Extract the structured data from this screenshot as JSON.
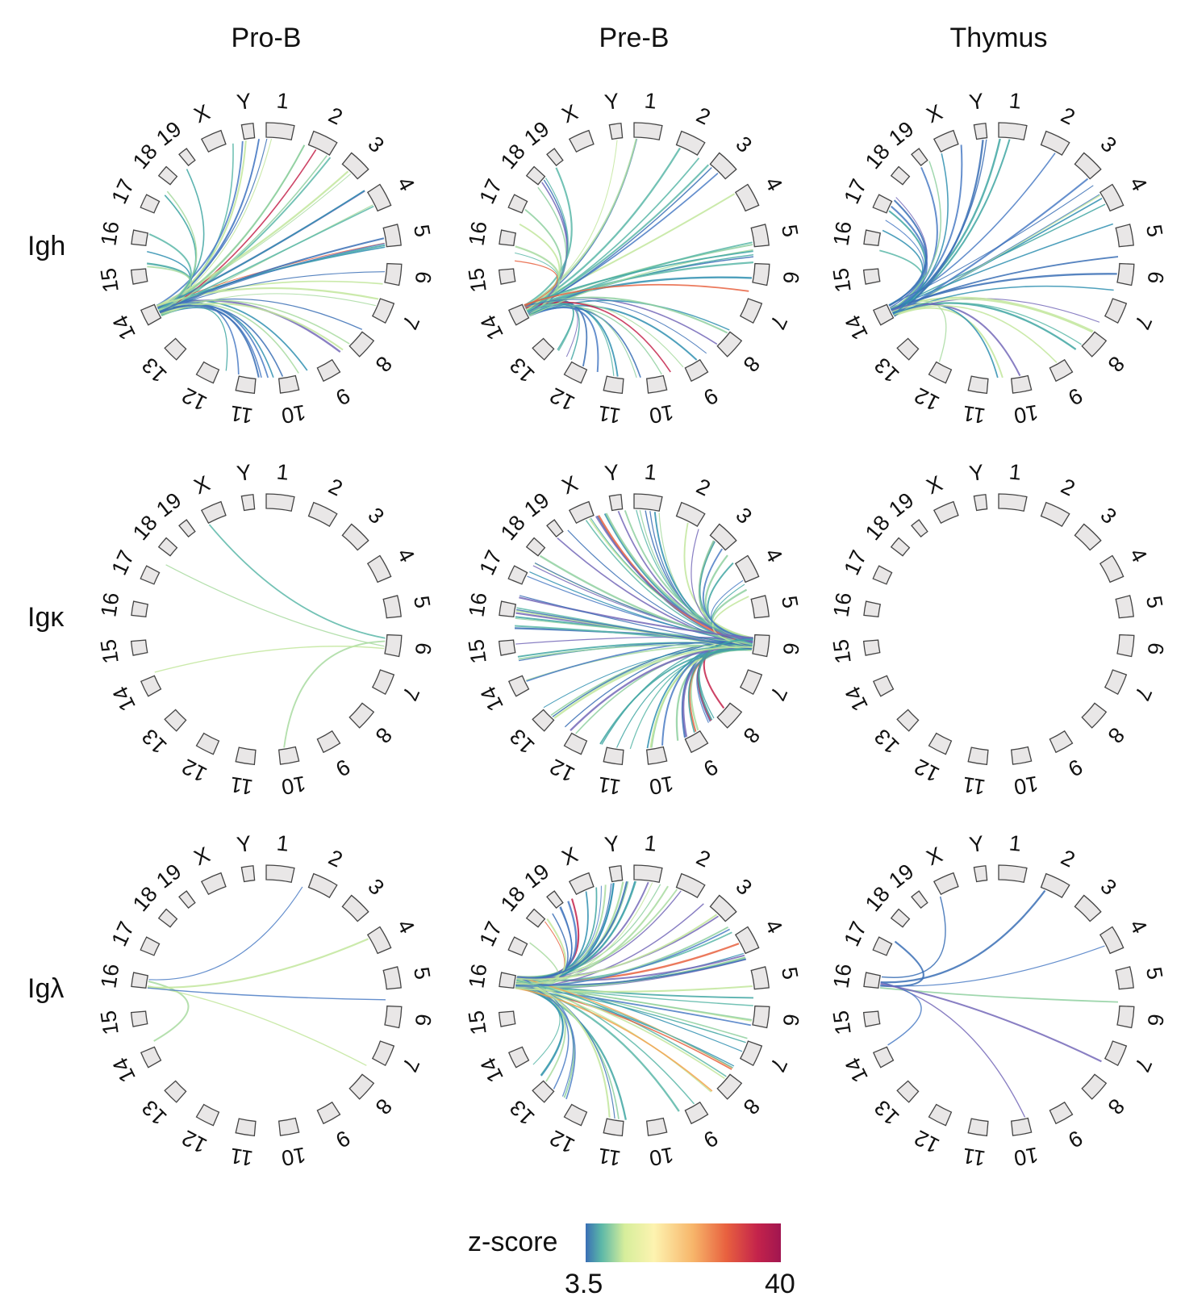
{
  "columns": [
    "Pro-B",
    "Pre-B",
    "Thymus"
  ],
  "rows": [
    "Igh",
    "Igκ",
    "Igλ"
  ],
  "chromosomes": [
    "1",
    "2",
    "3",
    "4",
    "5",
    "6",
    "7",
    "8",
    "9",
    "10",
    "11",
    "12",
    "13",
    "14",
    "15",
    "16",
    "17",
    "18",
    "19",
    "X",
    "Y"
  ],
  "legend": {
    "title": "z-score",
    "min_label": "3.5",
    "max_label": "40",
    "colors": [
      "#3a6fb5",
      "#5bb7a8",
      "#d6ee9b",
      "#fdf3b0",
      "#f7b56a",
      "#e8613f",
      "#c4234b",
      "#a11650"
    ]
  },
  "panels": [
    {
      "row": "Igh",
      "column": "Pro-B",
      "anchor_chromosome": "14",
      "link_count": 48,
      "links": "many"
    },
    {
      "row": "Igh",
      "column": "Pre-B",
      "anchor_chromosome": "14",
      "link_count": 46,
      "links": "many"
    },
    {
      "row": "Igh",
      "column": "Thymus",
      "anchor_chromosome": "14",
      "link_count": 36,
      "links": "many"
    },
    {
      "row": "Igκ",
      "column": "Pro-B",
      "anchor_chromosome": "6",
      "link_count": 4,
      "links": "few"
    },
    {
      "row": "Igκ",
      "column": "Pre-B",
      "anchor_chromosome": "6",
      "link_count": 80,
      "links": "many"
    },
    {
      "row": "Igκ",
      "column": "Thymus",
      "anchor_chromosome": "6",
      "link_count": 0,
      "links": "none"
    },
    {
      "row": "Igλ",
      "column": "Pro-B",
      "anchor_chromosome": "16",
      "link_count": 5,
      "links": "few"
    },
    {
      "row": "Igλ",
      "column": "Pre-B",
      "anchor_chromosome": "16",
      "link_count": 70,
      "links": "many"
    },
    {
      "row": "Igλ",
      "column": "Thymus",
      "anchor_chromosome": "16",
      "link_count": 8,
      "links": "few"
    }
  ]
}
